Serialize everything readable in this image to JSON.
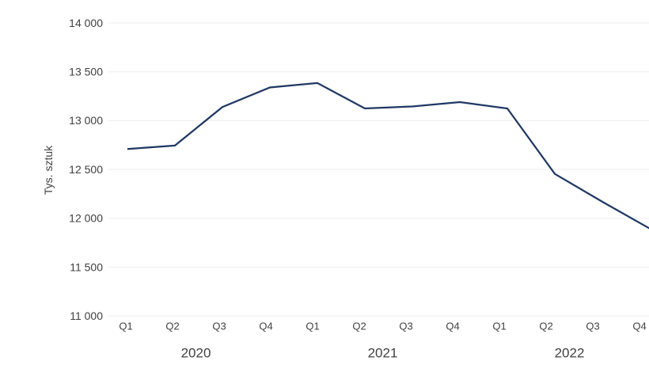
{
  "chart_data": {
    "type": "line",
    "title": "",
    "ylabel": "Tys. sztuk",
    "xlabel": "",
    "categories": [
      "Q1",
      "Q2",
      "Q3",
      "Q4",
      "Q1",
      "Q2",
      "Q3",
      "Q4",
      "Q1",
      "Q2",
      "Q3",
      "Q4"
    ],
    "year_groups": [
      {
        "label": "2020",
        "quarters": [
          0,
          1,
          2,
          3
        ]
      },
      {
        "label": "2021",
        "quarters": [
          4,
          5,
          6,
          7
        ]
      },
      {
        "label": "2022",
        "quarters": [
          8,
          9,
          10,
          11
        ]
      }
    ],
    "series": [
      {
        "name": "Tys. sztuk",
        "values": [
          12710,
          12745,
          13140,
          13340,
          13385,
          13125,
          13145,
          13190,
          13125,
          12455,
          12170,
          11895
        ]
      }
    ],
    "ylim": [
      11000,
      14000
    ],
    "ytick_interval": 500,
    "ytick_labels": [
      "11 000",
      "11 500",
      "12 000",
      "12 500",
      "13 000",
      "13 500",
      "14 000"
    ],
    "grid": "horizontal",
    "legend": "none",
    "colors": {
      "line": "#1F3864",
      "grid": "#EDEDED",
      "text": "#404040",
      "background": "#FFFFFF"
    }
  }
}
